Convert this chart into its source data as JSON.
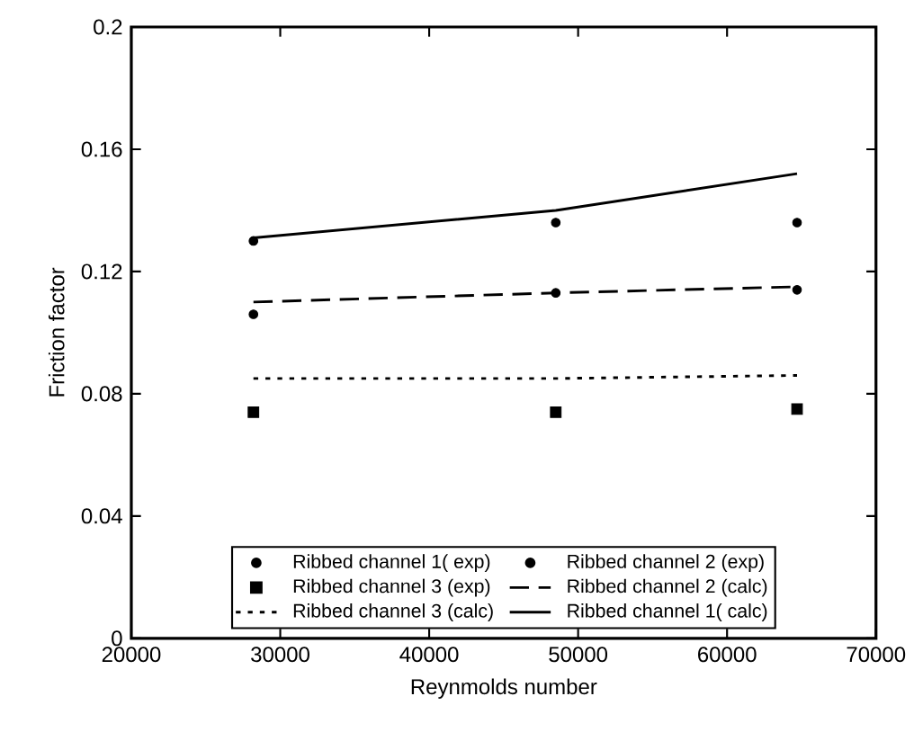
{
  "chart_data": {
    "type": "scatter",
    "xlabel": "Reynmolds number",
    "ylabel": "Friction factor",
    "xlim": [
      20000,
      70000
    ],
    "xticks": [
      20000,
      30000,
      40000,
      50000,
      60000,
      70000
    ],
    "ylim": [
      0,
      0.2
    ],
    "yticks": [
      0,
      0.04,
      0.08,
      0.12,
      0.16,
      0.2
    ],
    "x": [
      28200,
      48500,
      64700
    ],
    "grid": false,
    "legend": "bottom",
    "series": [
      {
        "name": "Ribbed channel 1(  exp)",
        "color": "#000000",
        "marker": "circle",
        "values": [
          0.13,
          0.136,
          0.136
        ]
      },
      {
        "name": "Ribbed channel 2 (exp)",
        "color": "#000000",
        "marker": "circle",
        "values": [
          0.106,
          0.113,
          0.114
        ]
      },
      {
        "name": "Ribbed channel 3 (exp)",
        "color": "#000000",
        "marker": "square",
        "values": [
          0.074,
          0.074,
          0.075
        ]
      },
      {
        "name": "Ribbed channel 2 (calc)",
        "type": "line",
        "color": "#000000",
        "marker": "none",
        "line_style": "dashed",
        "values": [
          0.11,
          0.113,
          0.115
        ]
      },
      {
        "name": "Ribbed channel 3 (calc)",
        "type": "line",
        "color": "#000000",
        "marker": "none",
        "line_style": "dotted",
        "values": [
          0.085,
          0.085,
          0.086
        ]
      },
      {
        "name": "Ribbed channel 1(  calc)",
        "type": "line",
        "color": "#000000",
        "marker": "none",
        "line_style": "solid",
        "values": [
          0.131,
          0.14,
          0.152
        ]
      }
    ]
  }
}
